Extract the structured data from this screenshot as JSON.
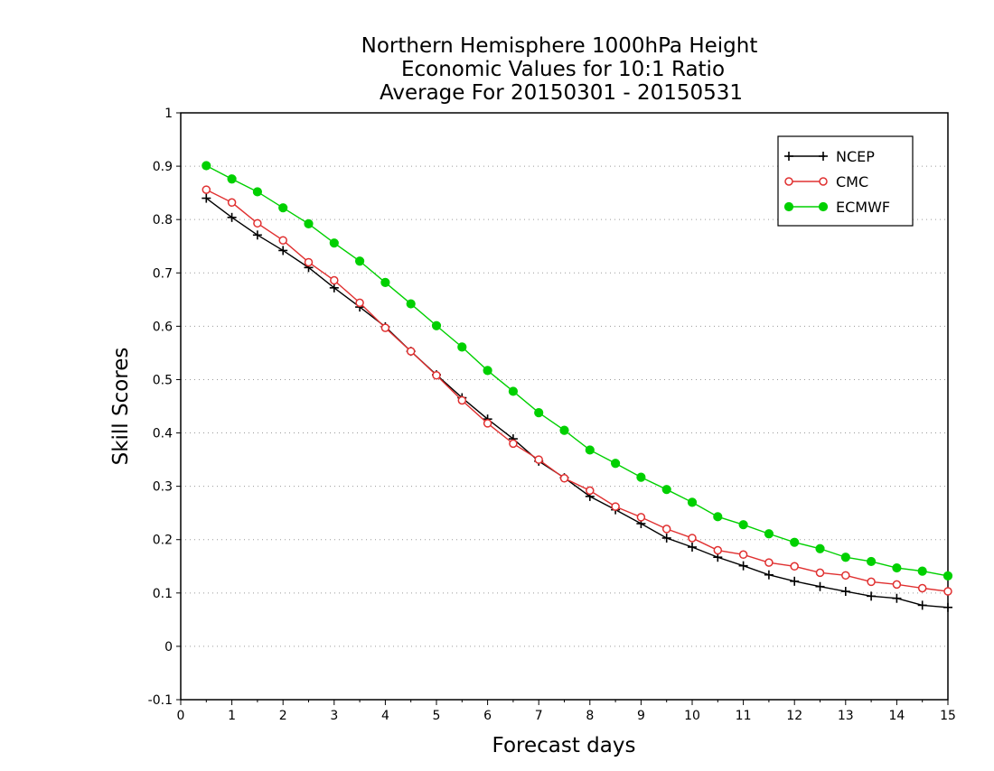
{
  "chart_data": {
    "type": "line",
    "title": [
      "Northern Hemisphere 1000hPa Height",
      "Economic Values for 10:1 Ratio",
      "Average For 20150301 - 20150531"
    ],
    "xlabel": "Forecast days",
    "ylabel": "Skill Scores",
    "xlim": [
      0,
      15
    ],
    "ylim": [
      -0.1,
      1
    ],
    "xticks": [
      "0",
      "1",
      "2",
      "3",
      "4",
      "5",
      "6",
      "7",
      "8",
      "9",
      "10",
      "11",
      "12",
      "13",
      "14",
      "15"
    ],
    "yticks": [
      "-0.1",
      "0",
      "0.1",
      "0.2",
      "0.3",
      "0.4",
      "0.5",
      "0.6",
      "0.7",
      "0.8",
      "0.9",
      "1"
    ],
    "grid": "dotted horizontal",
    "legend_position": "top-right",
    "x": [
      0.5,
      1,
      1.5,
      2,
      2.5,
      3,
      3.5,
      4,
      4.5,
      5,
      5.5,
      6,
      6.5,
      7,
      7.5,
      8,
      8.5,
      9,
      9.5,
      10,
      10.5,
      11,
      11.5,
      12,
      12.5,
      13,
      13.5,
      14,
      14.5,
      15
    ],
    "series": [
      {
        "name": "NCEP",
        "color": "#000000",
        "marker": "plus",
        "values": [
          0.84,
          0.804,
          0.771,
          0.742,
          0.71,
          0.672,
          0.636,
          0.599,
          0.553,
          0.509,
          0.466,
          0.426,
          0.389,
          0.347,
          0.316,
          0.281,
          0.256,
          0.23,
          0.203,
          0.186,
          0.167,
          0.151,
          0.134,
          0.122,
          0.112,
          0.103,
          0.094,
          0.09,
          0.077,
          0.073
        ]
      },
      {
        "name": "CMC",
        "color": "#e03030",
        "marker": "open-circle",
        "values": [
          0.856,
          0.832,
          0.793,
          0.761,
          0.72,
          0.686,
          0.644,
          0.597,
          0.553,
          0.508,
          0.461,
          0.418,
          0.38,
          0.35,
          0.315,
          0.292,
          0.262,
          0.242,
          0.22,
          0.203,
          0.18,
          0.172,
          0.157,
          0.15,
          0.138,
          0.133,
          0.121,
          0.116,
          0.109,
          0.103
        ]
      },
      {
        "name": "ECMWF",
        "color": "#00d000",
        "marker": "filled-circle",
        "values": [
          0.901,
          0.876,
          0.852,
          0.822,
          0.792,
          0.756,
          0.722,
          0.682,
          0.642,
          0.601,
          0.561,
          0.517,
          0.478,
          0.438,
          0.405,
          0.368,
          0.343,
          0.317,
          0.294,
          0.27,
          0.243,
          0.228,
          0.211,
          0.195,
          0.183,
          0.167,
          0.159,
          0.147,
          0.141,
          0.132
        ]
      }
    ]
  }
}
